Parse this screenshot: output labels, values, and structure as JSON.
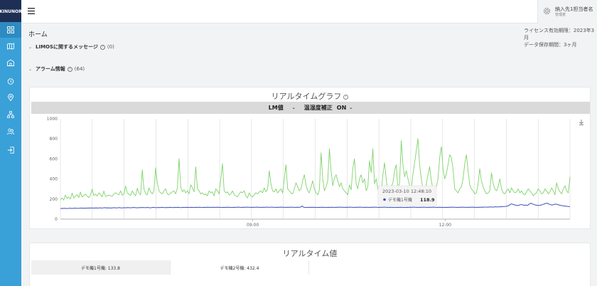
{
  "sidebar": {
    "logo": "KINUNOR",
    "items": [
      {
        "icon": "dashboard-icon",
        "active": true
      },
      {
        "icon": "map-icon"
      },
      {
        "icon": "building-icon"
      },
      {
        "icon": "alarm-clock-icon"
      },
      {
        "icon": "location-pin-icon"
      },
      {
        "icon": "device-tree-icon"
      },
      {
        "icon": "users-icon"
      },
      {
        "icon": "logout-icon"
      }
    ]
  },
  "header": {
    "menu_icon": "hamburger-icon",
    "user_icon": "gear-icon",
    "user_name": "納入先1担当者名",
    "user_role": "管理者"
  },
  "page": {
    "title": "ホーム",
    "license_line1": "ライセンス有効期限：2023年3月",
    "license_line2": "データ保存期間：3ヶ月"
  },
  "sections": [
    {
      "title": "LIMOSに関するメッセージ",
      "count": "(0)"
    },
    {
      "title": "アラーム情報",
      "count": "(64)"
    }
  ],
  "chart_card": {
    "title": "リアルタイムグラフ",
    "help": "?",
    "metric_select": "LM値",
    "correction_label": "温湿度補正",
    "correction_value": "ON",
    "download_icon": "download-icon",
    "tooltip": {
      "time": "2023-03-10 12:48:10",
      "series": "デモ機1号機",
      "value": "118.9"
    }
  },
  "chart_data": {
    "type": "line",
    "ylim": [
      0,
      1000
    ],
    "yticks": [
      "0",
      "200",
      "400",
      "600",
      "800",
      "1000"
    ],
    "xticks": [
      "09:00",
      "12:00"
    ],
    "grid": true,
    "series": [
      {
        "name": "デモ機2号機",
        "color": "#7fd36b",
        "values": [
          195,
          210,
          190,
          240,
          205,
          220,
          200,
          260,
          210,
          230,
          245,
          215,
          270,
          220,
          235,
          250,
          228,
          215,
          240,
          300,
          235,
          250,
          230,
          262,
          245,
          222,
          280,
          226,
          233,
          240,
          232,
          228,
          252,
          262,
          250,
          242,
          282,
          238,
          252,
          330,
          262,
          248,
          236,
          282,
          252,
          232,
          308,
          262,
          242,
          492,
          302,
          252,
          242,
          312,
          272,
          252,
          282,
          512,
          362,
          282,
          262,
          252,
          282,
          302,
          252,
          242,
          262,
          272,
          282,
          252,
          310,
          602,
          322,
          272,
          292,
          262,
          282,
          252,
          342,
          312,
          272,
          522,
          302,
          282,
          252,
          262,
          242,
          252,
          232,
          282,
          262,
          272,
          232,
          302,
          282,
          252,
          402,
          552,
          282,
          262,
          272,
          242,
          252,
          282,
          242,
          232,
          222,
          252,
          272,
          262,
          282,
          232,
          212,
          262,
          232,
          222,
          242,
          262,
          252,
          272,
          282,
          262,
          312,
          272,
          302,
          482,
          352,
          282,
          272,
          302,
          262,
          282,
          302,
          262,
          402,
          542,
          302,
          282,
          262,
          252,
          302,
          362,
          322,
          282,
          302,
          382,
          442,
          342,
          282,
          262,
          322,
          382,
          302,
          262,
          242,
          292,
          662,
          402,
          282,
          322,
          382,
          702,
          482,
          332,
          412,
          442,
          382,
          322,
          362,
          302,
          282,
          262,
          242,
          342,
          292,
          502,
          602,
          352,
          302,
          402,
          442,
          362,
          402,
          282,
          322,
          582,
          462,
          702,
          352,
          402,
          302,
          252,
          262,
          442,
          562,
          402,
          262,
          282,
          322,
          362,
          482,
          542,
          302,
          362,
          782,
          542,
          422,
          482,
          402,
          332,
          302,
          452,
          562,
          682,
          802,
          542,
          402,
          302,
          262,
          352,
          442,
          522,
          382,
          302,
          282,
          322,
          402,
          612,
          722,
          502,
          402,
          452,
          542,
          642,
          612,
          502,
          302,
          282,
          262,
          302,
          322,
          402,
          552,
          642,
          482,
          342,
          302,
          282,
          252,
          262,
          352,
          502,
          382,
          322,
          282,
          252,
          262,
          282,
          462,
          352,
          302,
          282,
          322,
          402,
          302,
          262,
          252,
          282,
          302,
          262,
          312,
          282,
          262,
          272,
          302,
          262,
          282,
          252,
          242,
          272,
          302,
          282,
          262,
          232,
          252,
          262,
          302,
          282,
          252,
          262,
          302,
          282,
          252,
          272,
          312,
          282,
          242,
          362,
          302,
          272,
          252,
          302,
          332,
          282,
          262,
          422
        ]
      },
      {
        "name": "デモ機1号機",
        "color": "#3d4fb8",
        "values": [
          105,
          107,
          106,
          108,
          105,
          107,
          109,
          106,
          108,
          110,
          107,
          108,
          109,
          111,
          108,
          110,
          109,
          111,
          110,
          112,
          110,
          111,
          112,
          110,
          113,
          111,
          112,
          114,
          112,
          113,
          112,
          111,
          113,
          114,
          112,
          113,
          115,
          113,
          112,
          114,
          113,
          115,
          114,
          113,
          115,
          116,
          114,
          113,
          115,
          114,
          116,
          115,
          114,
          116,
          115,
          113,
          115,
          117,
          115,
          114,
          116,
          115,
          117,
          116,
          114,
          116,
          115,
          117,
          116,
          115,
          117,
          116,
          118,
          116,
          115,
          117,
          116,
          118,
          117,
          116,
          118,
          117,
          116,
          118,
          117,
          119,
          117,
          116,
          118,
          117,
          119,
          118,
          117,
          119,
          118,
          117,
          119,
          118,
          117,
          116,
          118,
          117,
          119,
          118,
          117,
          116,
          118,
          117,
          119,
          120,
          118,
          117,
          119,
          118,
          120,
          119,
          118,
          117,
          119,
          118,
          120,
          119,
          118,
          117,
          119,
          118,
          120,
          119,
          118,
          120,
          119,
          118,
          117,
          119,
          118,
          120,
          119,
          118,
          117,
          119,
          118,
          120,
          119,
          118,
          117,
          119,
          118,
          120,
          130,
          118,
          117,
          116,
          118,
          117,
          119,
          118,
          117,
          116,
          118,
          117,
          119,
          118,
          117,
          116,
          118,
          117,
          119,
          118,
          117,
          119,
          118,
          120,
          119,
          118,
          117,
          119,
          118,
          120,
          119,
          118,
          117,
          119,
          118,
          120,
          119,
          118,
          117,
          119,
          118,
          117,
          119,
          118,
          120,
          119,
          118,
          117,
          119,
          118,
          120,
          119,
          118,
          117,
          119,
          118,
          117,
          116,
          118,
          117,
          119,
          118,
          117,
          116,
          118,
          117,
          119,
          118,
          120,
          119,
          118,
          117,
          119,
          118,
          120,
          119,
          118,
          117,
          119,
          118,
          120,
          119,
          118,
          117,
          119,
          118,
          117,
          116,
          118,
          117,
          119,
          118,
          120,
          119,
          118,
          117,
          119,
          118,
          120,
          119,
          118,
          117,
          119,
          118,
          120,
          119,
          118,
          117,
          119,
          118,
          120,
          119,
          121,
          120,
          119,
          122,
          121,
          120,
          123,
          122,
          121,
          124,
          123,
          125,
          126,
          128,
          132,
          140,
          152,
          148,
          142,
          138,
          135,
          140,
          145,
          143,
          138,
          140,
          136,
          150,
          158,
          152,
          145,
          140,
          138,
          136,
          140,
          143,
          150,
          155,
          160,
          150,
          145,
          140,
          145,
          150,
          148,
          142,
          138,
          135,
          132,
          130,
          128,
          126,
          125
        ]
      }
    ]
  },
  "values_card": {
    "title": "リアルタイム値",
    "cells": [
      "デモ機1号機: 133.8",
      "デモ機2号機: 432.4"
    ]
  }
}
